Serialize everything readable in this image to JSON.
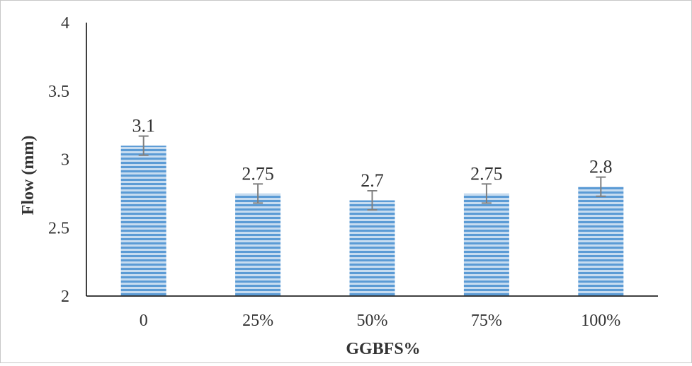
{
  "chart_data": {
    "type": "bar",
    "title": "",
    "xlabel": "GGBFS%",
    "ylabel": "Flow (mm)",
    "categories": [
      "0",
      "25%",
      "50%",
      "75%",
      "100%"
    ],
    "values": [
      3.1,
      2.75,
      2.7,
      2.75,
      2.8
    ],
    "data_labels": [
      "3.1",
      "2.75",
      "2.7",
      "2.75",
      "2.8"
    ],
    "error": [
      0.07,
      0.07,
      0.07,
      0.07,
      0.07
    ],
    "ylim": [
      2,
      4
    ],
    "yticks": [
      2,
      2.5,
      3,
      3.5,
      4
    ],
    "ytick_labels": [
      "2",
      "2.5",
      "3",
      "3.5",
      "4"
    ],
    "grid": false,
    "legend": "none",
    "colors": {
      "bar_stripe_dark": "#5b9bd5",
      "bar_stripe_light": "#c7dcf0",
      "error_bar": "#7f7f7f",
      "axis": "#000000",
      "text": "#333333"
    }
  }
}
